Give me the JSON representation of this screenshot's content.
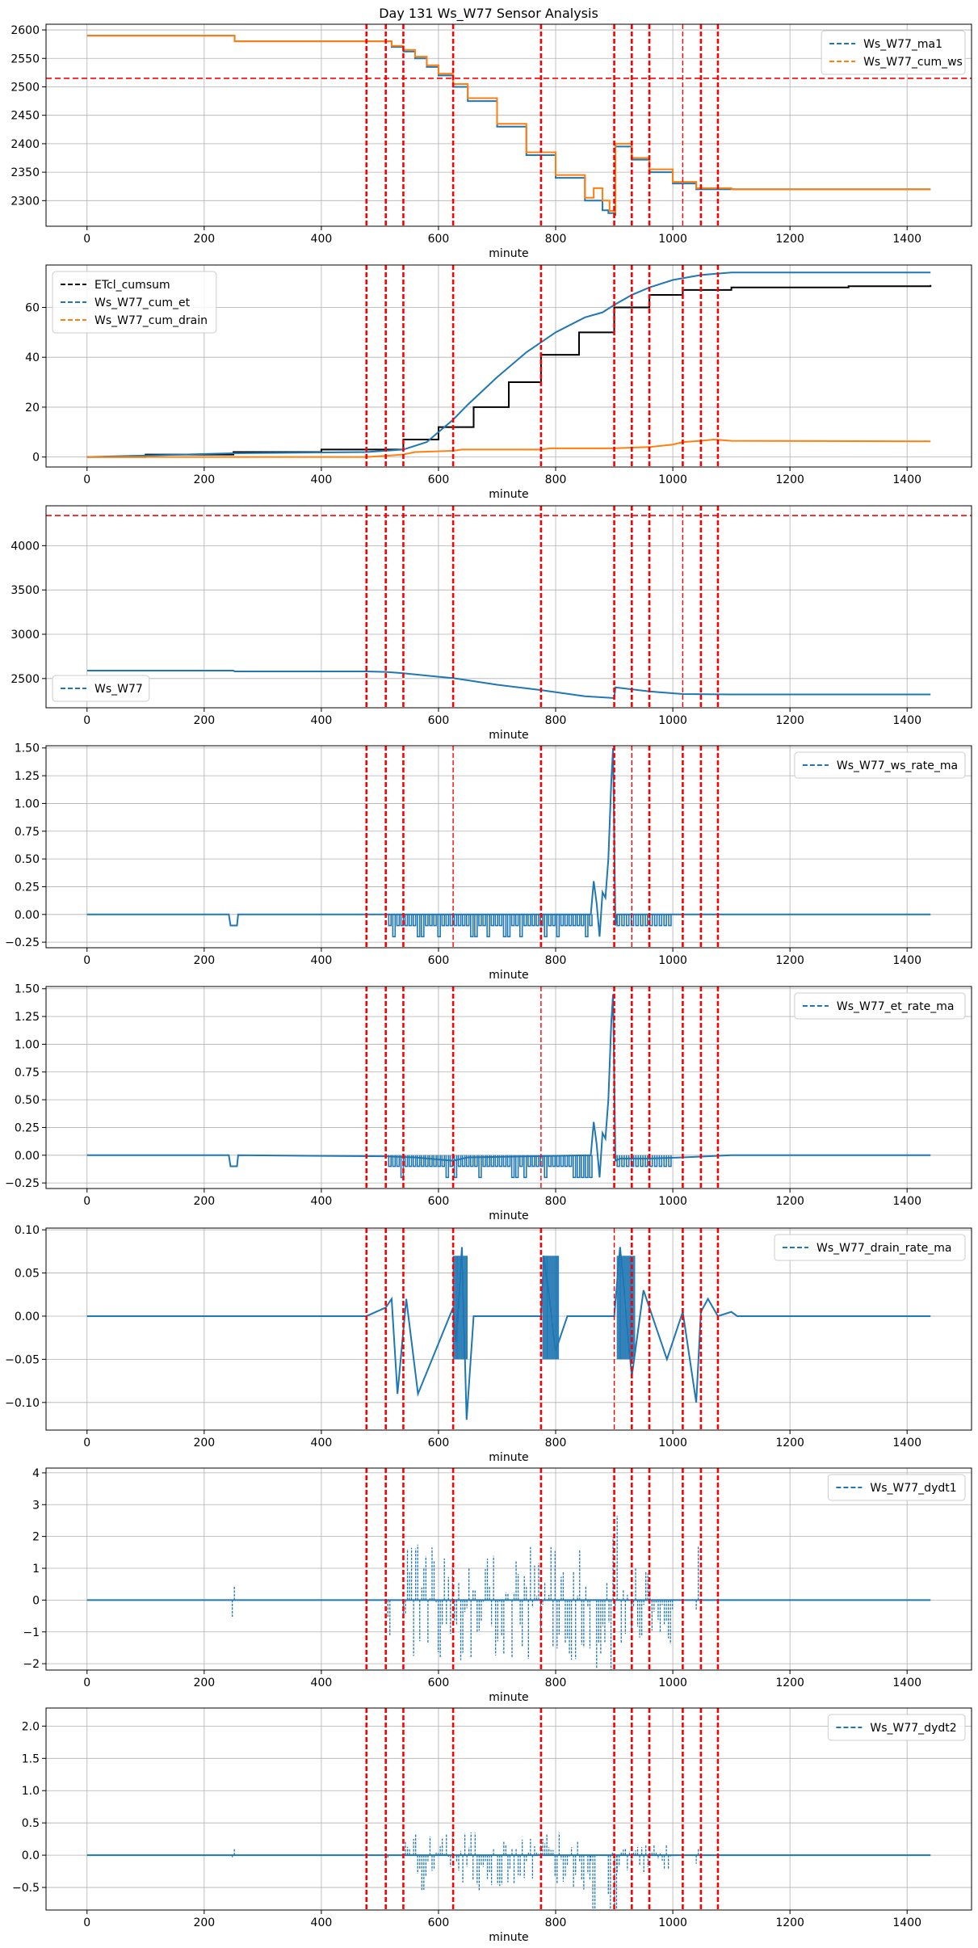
{
  "figure_title": "Day 131 Ws_W77 Sensor Analysis",
  "colors": {
    "blue": "#1f77b4",
    "orange": "#ff7f0e",
    "black": "#000000",
    "red": "#ff0000",
    "grid": "#b0b0b0"
  },
  "event_lines": [
    477,
    510,
    540,
    625,
    775,
    900,
    930,
    960,
    1017,
    1048,
    1077
  ],
  "chart_data": [
    {
      "type": "line",
      "xlabel": "minute",
      "xlim": [
        -70,
        1510
      ],
      "xticks": [
        0,
        200,
        400,
        600,
        800,
        1000,
        1200,
        1400
      ],
      "ylim": [
        2255,
        2610
      ],
      "yticks": [
        2300,
        2350,
        2400,
        2450,
        2500,
        2550,
        2600
      ],
      "ytick_labels": [
        "2300",
        "2350",
        "2400",
        "2450",
        "2500",
        "2550",
        "2600"
      ],
      "hline": 2515,
      "legend_loc": "upper right",
      "series": [
        {
          "name": "Ws_W77_ma1",
          "color": "#1f77b4",
          "style": "step",
          "x": [
            0,
            250,
            252,
            477,
            520,
            540,
            560,
            580,
            600,
            625,
            650,
            700,
            750,
            800,
            850,
            880,
            890,
            900,
            902,
            930,
            960,
            1000,
            1040,
            1100,
            1440
          ],
          "y": [
            2590,
            2590,
            2580,
            2580,
            2570,
            2562,
            2550,
            2535,
            2520,
            2500,
            2475,
            2430,
            2380,
            2340,
            2300,
            2283,
            2278,
            2275,
            2395,
            2372,
            2350,
            2330,
            2320,
            2320,
            2320
          ]
        },
        {
          "name": "Ws_W77_cum_ws",
          "color": "#ff7f0e",
          "style": "step",
          "x": [
            0,
            250,
            252,
            477,
            520,
            540,
            560,
            580,
            600,
            625,
            650,
            700,
            750,
            800,
            850,
            865,
            880,
            892,
            900,
            902,
            930,
            960,
            1000,
            1040,
            1100,
            1440
          ],
          "y": [
            2590,
            2590,
            2580,
            2580,
            2572,
            2565,
            2553,
            2538,
            2523,
            2505,
            2480,
            2435,
            2385,
            2345,
            2305,
            2322,
            2300,
            2282,
            2280,
            2400,
            2375,
            2355,
            2333,
            2322,
            2320,
            2320
          ]
        }
      ]
    },
    {
      "type": "line",
      "xlabel": "minute",
      "xlim": [
        -70,
        1510
      ],
      "xticks": [
        0,
        200,
        400,
        600,
        800,
        1000,
        1200,
        1400
      ],
      "ylim": [
        -4,
        77
      ],
      "yticks": [
        0,
        20,
        40,
        60
      ],
      "ytick_labels": [
        "0",
        "20",
        "40",
        "60"
      ],
      "legend_loc": "upper left",
      "series": [
        {
          "name": "ETcl_cumsum",
          "color": "#000000",
          "style": "step",
          "x": [
            0,
            100,
            250,
            400,
            540,
            600,
            660,
            720,
            775,
            840,
            900,
            960,
            1017,
            1100,
            1200,
            1300,
            1440
          ],
          "y": [
            0,
            1,
            2,
            3,
            7,
            12,
            20,
            30,
            41,
            50,
            60,
            65,
            67,
            68,
            68,
            68.5,
            69
          ]
        },
        {
          "name": "Ws_W77_cum_et",
          "color": "#1f77b4",
          "style": "line",
          "x": [
            0,
            250,
            477,
            540,
            580,
            600,
            625,
            650,
            700,
            750,
            800,
            850,
            880,
            900,
            930,
            960,
            1000,
            1048,
            1100,
            1200,
            1440
          ],
          "y": [
            0,
            1.5,
            2,
            3,
            6,
            10,
            15,
            21,
            32,
            42,
            50,
            56,
            58,
            61,
            65,
            68,
            71,
            73,
            74,
            74,
            74
          ]
        },
        {
          "name": "Ws_W77_cum_drain",
          "color": "#ff7f0e",
          "style": "line",
          "x": [
            0,
            250,
            477,
            510,
            540,
            560,
            625,
            640,
            775,
            790,
            900,
            960,
            1000,
            1017,
            1048,
            1070,
            1100,
            1440
          ],
          "y": [
            0,
            0,
            0,
            0.5,
            1,
            2,
            2.5,
            3,
            3,
            3.5,
            3.5,
            4,
            5,
            6,
            6.5,
            7,
            6.5,
            6.3
          ]
        }
      ]
    },
    {
      "type": "line",
      "xlabel": "minute",
      "xlim": [
        -70,
        1510
      ],
      "xticks": [
        0,
        200,
        400,
        600,
        800,
        1000,
        1200,
        1400
      ],
      "ylim": [
        2170,
        4450
      ],
      "yticks": [
        2500,
        3000,
        3500,
        4000
      ],
      "ytick_labels": [
        "2500",
        "3000",
        "3500",
        "4000"
      ],
      "hline": 4340,
      "legend_loc": "lower left",
      "series": [
        {
          "name": "Ws_W77",
          "color": "#1f77b4",
          "style": "line",
          "x": [
            0,
            250,
            252,
            477,
            510,
            540,
            600,
            625,
            700,
            775,
            850,
            900,
            902,
            960,
            1017,
            1100,
            1440
          ],
          "y": [
            2590,
            2590,
            2580,
            2580,
            2575,
            2560,
            2520,
            2505,
            2430,
            2370,
            2300,
            2280,
            2400,
            2355,
            2325,
            2320,
            2320
          ]
        }
      ]
    },
    {
      "type": "line",
      "xlabel": "minute",
      "xlim": [
        -70,
        1510
      ],
      "xticks": [
        0,
        200,
        400,
        600,
        800,
        1000,
        1200,
        1400
      ],
      "ylim": [
        -0.3,
        1.52
      ],
      "yticks": [
        -0.25,
        0,
        0.25,
        0.5,
        0.75,
        1.0,
        1.25,
        1.5
      ],
      "ytick_labels": [
        "−0.25",
        "0.00",
        "0.25",
        "0.50",
        "0.75",
        "1.00",
        "1.25",
        "1.50"
      ],
      "legend_loc": "upper right",
      "series": [
        {
          "name": "Ws_W77_ws_rate_ma",
          "color": "#1f77b4",
          "style": "line",
          "x": [
            0,
            242,
            245,
            256,
            258,
            510,
            512,
            860,
            865,
            870,
            875,
            880,
            885,
            890,
            895,
            898,
            902,
            905,
            910,
            1440
          ],
          "y": [
            0,
            0,
            -0.1,
            -0.1,
            0,
            0,
            0,
            0,
            0.3,
            0.1,
            -0.2,
            0.2,
            0.15,
            0.5,
            1.2,
            1.5,
            -0.1,
            0,
            0,
            0
          ]
        }
      ]
    },
    {
      "type": "line",
      "xlabel": "minute",
      "xlim": [
        -70,
        1510
      ],
      "xticks": [
        0,
        200,
        400,
        600,
        800,
        1000,
        1200,
        1400
      ],
      "ylim": [
        -0.3,
        1.52
      ],
      "yticks": [
        -0.25,
        0,
        0.25,
        0.5,
        0.75,
        1.0,
        1.25,
        1.5
      ],
      "ytick_labels": [
        "−0.25",
        "0.00",
        "0.25",
        "0.50",
        "0.75",
        "1.00",
        "1.25",
        "1.50"
      ],
      "legend_loc": "upper right",
      "series": [
        {
          "name": "Ws_W77_et_rate_ma",
          "color": "#1f77b4",
          "style": "line",
          "x": [
            0,
            242,
            245,
            256,
            258,
            510,
            560,
            625,
            650,
            860,
            865,
            870,
            875,
            880,
            885,
            890,
            895,
            898,
            902,
            910,
            960,
            1017,
            1100,
            1440
          ],
          "y": [
            0,
            0,
            -0.1,
            -0.1,
            0,
            -0.01,
            -0.02,
            -0.05,
            -0.02,
            0,
            0.3,
            0.1,
            -0.2,
            0.2,
            0.15,
            0.5,
            1.2,
            1.45,
            -0.05,
            -0.03,
            -0.03,
            -0.02,
            0,
            0
          ]
        }
      ]
    },
    {
      "type": "line",
      "xlabel": "minute",
      "xlim": [
        -70,
        1510
      ],
      "xticks": [
        0,
        200,
        400,
        600,
        800,
        1000,
        1200,
        1400
      ],
      "ylim": [
        -0.132,
        0.102
      ],
      "yticks": [
        -0.1,
        -0.05,
        0,
        0.05,
        0.1
      ],
      "ytick_labels": [
        "−0.10",
        "−0.05",
        "0.00",
        "0.05",
        "0.10"
      ],
      "legend_loc": "upper right",
      "series": [
        {
          "name": "Ws_W77_drain_rate_ma",
          "color": "#1f77b4",
          "style": "line",
          "x": [
            0,
            477,
            510,
            520,
            530,
            545,
            565,
            625,
            630,
            640,
            648,
            660,
            775,
            780,
            800,
            820,
            900,
            910,
            930,
            950,
            990,
            1017,
            1040,
            1048,
            1060,
            1077,
            1100,
            1110,
            1440
          ],
          "y": [
            0,
            0,
            0.01,
            0.02,
            -0.09,
            0.02,
            -0.09,
            0.01,
            -0.03,
            0.08,
            -0.12,
            0,
            0,
            0.07,
            -0.04,
            0,
            0,
            0.08,
            -0.07,
            0.03,
            -0.05,
            0.005,
            -0.1,
            0.005,
            0.02,
            0,
            0.005,
            0,
            0
          ]
        }
      ]
    },
    {
      "type": "line",
      "xlabel": "minute",
      "xlim": [
        -70,
        1510
      ],
      "xticks": [
        0,
        200,
        400,
        600,
        800,
        1000,
        1200,
        1400
      ],
      "ylim": [
        -2.2,
        4.15
      ],
      "yticks": [
        -2,
        -1,
        0,
        1,
        2,
        3,
        4
      ],
      "ytick_labels": [
        "−2",
        "−1",
        "0",
        "1",
        "2",
        "3",
        "4"
      ],
      "legend_loc": "upper right",
      "series": [
        {
          "name": "Ws_W77_dydt1",
          "color": "#1f77b4",
          "style": "line",
          "x": [
            0,
            250,
            1440
          ],
          "y": [
            0,
            0,
            0
          ]
        }
      ]
    },
    {
      "type": "line",
      "xlabel": "minute",
      "xlim": [
        -70,
        1510
      ],
      "xticks": [
        0,
        200,
        400,
        600,
        800,
        1000,
        1200,
        1400
      ],
      "ylim": [
        -0.85,
        2.28
      ],
      "yticks": [
        -0.5,
        0,
        0.5,
        1.0,
        1.5,
        2.0
      ],
      "ytick_labels": [
        "−0.5",
        "0.0",
        "0.5",
        "1.0",
        "1.5",
        "2.0"
      ],
      "legend_loc": "upper right",
      "series": [
        {
          "name": "Ws_W77_dydt2",
          "color": "#1f77b4",
          "style": "line",
          "x": [
            0,
            250,
            1440
          ],
          "y": [
            0,
            0,
            0
          ]
        }
      ]
    }
  ]
}
